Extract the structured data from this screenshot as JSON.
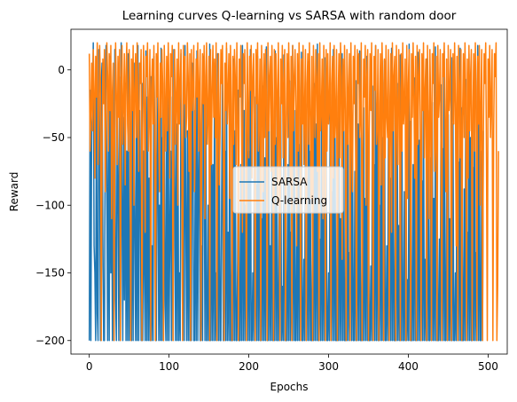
{
  "chart_data": {
    "type": "line",
    "title": "Learning curves Q-learning vs SARSA with random door",
    "xlabel": "Epochs",
    "ylabel": "Reward",
    "xlim": [
      -23,
      524
    ],
    "ylim": [
      -210,
      30
    ],
    "xticks": [
      0,
      100,
      200,
      300,
      400,
      500
    ],
    "yticks": [
      -200,
      -150,
      -100,
      -50,
      0
    ],
    "legend_loc": "center",
    "grid": false,
    "n_points": 500,
    "series": [
      {
        "name": "SARSA",
        "color": "#1f77b4",
        "min": -200,
        "max": 20,
        "values": [
          -200,
          -15,
          -200,
          -45,
          -30,
          20,
          -130,
          -150,
          -200,
          -5,
          -180,
          -200,
          15,
          -60,
          -200,
          -10,
          5,
          -120,
          -200,
          -200,
          -40,
          18,
          -90,
          -200,
          -25,
          -200,
          10,
          -150,
          -60,
          -200,
          -30,
          -200,
          15,
          -170,
          -200,
          -20,
          -80,
          -200,
          -5,
          -200,
          20,
          -100,
          -200,
          -35,
          -170,
          -10,
          -200,
          -60,
          -200,
          12,
          -200,
          -140,
          -40,
          -200,
          -15,
          -200,
          5,
          -120,
          -200,
          -50,
          -200,
          18,
          -200,
          -30,
          -90,
          -200,
          -10,
          -200,
          -60,
          -150,
          -200,
          14,
          -200,
          -20,
          -200,
          -80,
          -200,
          -5,
          -200,
          -130,
          -200,
          10,
          -40,
          -200,
          -200,
          -70,
          -15,
          -200,
          -100,
          -200,
          16,
          -200,
          -50,
          -200,
          -10,
          -170,
          -200,
          -30,
          -200,
          8,
          -200,
          -120,
          -60,
          -200,
          -20,
          -200,
          15,
          -90,
          -200,
          -40,
          -200,
          -5,
          -200,
          -150,
          -200,
          12,
          -70,
          -200,
          -25,
          -200,
          18,
          -110,
          -200,
          -45,
          -200,
          -10,
          -200,
          -160,
          -200,
          5,
          -60,
          -200,
          -200,
          -30,
          -200,
          14,
          -200,
          -80,
          -20,
          -200,
          -200,
          -130,
          -200,
          10,
          -50,
          -200,
          -15,
          -200,
          -200,
          -100,
          -200,
          19,
          -200,
          -35,
          -200,
          -70,
          -200,
          -5,
          -200,
          -150,
          -200,
          12,
          -200,
          -40,
          -200,
          -200,
          -90,
          -10,
          -200,
          -200,
          -60,
          -200,
          16,
          -200,
          -120,
          -200,
          -25,
          -200,
          -200,
          -80,
          -200,
          8,
          -200,
          -45,
          -200,
          -200,
          -140,
          -15,
          -200,
          -200,
          -70,
          -200,
          18,
          -200,
          -30,
          -200,
          -100,
          -200,
          -5,
          -200,
          -60,
          -200,
          15,
          -200,
          -200,
          -150,
          -200,
          -20,
          -200,
          -85,
          -200,
          10,
          -200,
          -40,
          -200,
          -200,
          -110,
          -200,
          -12,
          -200,
          -65,
          -200,
          17,
          -200,
          -200,
          -35,
          -200,
          -130,
          -200,
          -5,
          -200,
          -75,
          -200,
          14,
          -200,
          -50,
          -200,
          -200,
          -95,
          -200,
          -20,
          -200,
          -160,
          -200,
          11,
          -200,
          -45,
          -200,
          -200,
          -70,
          -200,
          -8,
          -200,
          -120,
          -200,
          18,
          -200,
          -30,
          -200,
          -200,
          -90,
          -200,
          -15,
          -200,
          -55,
          -200,
          13,
          -200,
          -200,
          -140,
          -200,
          -25,
          -200,
          -80,
          -200,
          6,
          -200,
          -60,
          -200,
          -200,
          -105,
          -200,
          -10,
          -200,
          -40,
          -200,
          19,
          -200,
          -200,
          -125,
          -200,
          -35,
          -200,
          -70,
          -200,
          9,
          -200,
          -50,
          -200,
          -200,
          -150,
          -200,
          -18,
          -200,
          -90,
          -200,
          15,
          -200,
          -30,
          -200,
          -200,
          -65,
          -200,
          -5,
          -200,
          -110,
          -200,
          12,
          -200,
          -45,
          -200,
          -200,
          -85,
          -200,
          -22,
          -200,
          -135,
          -200,
          17,
          -200,
          -55,
          -200,
          -200,
          -75,
          -200,
          -8,
          -200,
          -40,
          -200,
          14,
          -200,
          -200,
          -120,
          -200,
          -28,
          -200,
          -95,
          -200,
          10,
          -200,
          -60,
          -200,
          -200,
          -145,
          -200,
          -12,
          -200,
          -70,
          -200,
          18,
          -200,
          -35,
          -200,
          -200,
          -100,
          -200,
          -18,
          -200,
          -50,
          -200,
          7,
          -200,
          -200,
          -130,
          -200,
          -42,
          -200,
          -80,
          -200,
          16,
          -200,
          -25,
          -200,
          -200,
          -60,
          -200,
          -10,
          -200,
          -115,
          -200,
          11,
          -200,
          -48,
          -200,
          -200,
          -90,
          -200,
          -20,
          -200,
          -155,
          -200,
          19,
          -200,
          -38,
          -200,
          -200,
          -70,
          -200,
          -6,
          -200,
          -105,
          -200,
          13,
          -200,
          -52,
          -200,
          -200,
          -82,
          -200,
          -15,
          -200,
          -140,
          -200,
          8,
          -200,
          -30,
          -200,
          -200,
          -65,
          -200,
          -24,
          -200,
          -95,
          -200,
          17,
          -200,
          -44,
          -200,
          -200,
          -125,
          -200,
          -11,
          -200,
          -58,
          -200,
          14,
          -200,
          -200,
          -78,
          -200,
          -33,
          -200,
          -110,
          -200,
          9,
          -200,
          -40,
          -200,
          -200,
          -150,
          -200,
          -19,
          -200,
          -68,
          -200,
          16,
          -200,
          -28,
          -200,
          -200,
          -88,
          -200,
          -7,
          -200,
          -120,
          -200,
          12,
          -200,
          -50,
          -200,
          -200,
          -72,
          -200,
          -16,
          -200,
          -135,
          -200,
          18,
          -200,
          -36,
          -200,
          -200,
          -60,
          -200,
          -45
        ]
      },
      {
        "name": "Q-learning",
        "color": "#ff7f0e",
        "min": -200,
        "max": 20,
        "values": [
          12,
          -60,
          -30,
          5,
          -45,
          15,
          -15,
          -80,
          10,
          -20,
          20,
          -70,
          -35,
          18,
          -10,
          -200,
          -50,
          8,
          -25,
          15,
          -90,
          -40,
          20,
          -5,
          -60,
          12,
          -30,
          18,
          -110,
          -15,
          5,
          -200,
          -45,
          20,
          -20,
          -70,
          10,
          -35,
          15,
          -200,
          -10,
          18,
          -55,
          -25,
          12,
          -85,
          -5,
          20,
          -40,
          -60,
          15,
          -20,
          -200,
          8,
          -30,
          18,
          -100,
          -15,
          12,
          -50,
          20,
          -35,
          -75,
          5,
          -10,
          15,
          -200,
          -45,
          18,
          -25,
          -120,
          10,
          -5,
          20,
          -60,
          -30,
          15,
          -200,
          -15,
          8,
          -40,
          18,
          -70,
          -200,
          12,
          -20,
          20,
          -50,
          -90,
          5,
          -35,
          15,
          -10,
          -200,
          18,
          -25,
          -60,
          10,
          -45,
          20,
          -15,
          -80,
          12,
          -5,
          18,
          -200,
          -30,
          15,
          -55,
          -20,
          8,
          -100,
          20,
          -40,
          -10,
          15,
          -65,
          -200,
          18,
          -25,
          10,
          -50,
          -35,
          20,
          -5,
          -75,
          12,
          -200,
          15,
          -30,
          -15,
          18,
          -90,
          -45,
          8,
          -20,
          20,
          -60,
          -10,
          15,
          -200,
          -40,
          12,
          -25,
          18,
          -110,
          -5,
          20,
          -55,
          -30,
          10,
          -200,
          15,
          -70,
          -15,
          18,
          -35,
          8,
          -50,
          20,
          -200,
          -20,
          12,
          -85,
          -45,
          15,
          -10,
          18,
          -60,
          -200,
          5,
          -30,
          20,
          -40,
          -15,
          12,
          -95,
          18,
          -25,
          -200,
          10,
          -55,
          15,
          -5,
          -70,
          20,
          -35,
          -200,
          8,
          -20,
          18,
          -50,
          -120,
          12,
          -10,
          15,
          -45,
          -200,
          20,
          -30,
          -65,
          10,
          -15,
          18,
          -80,
          -5,
          12,
          -40,
          -200,
          15,
          -25,
          20,
          -60,
          -35,
          8,
          -200,
          18,
          -10,
          -90,
          12,
          -50,
          15,
          -20,
          -200,
          20,
          -45,
          -5,
          10,
          -75,
          18,
          -30,
          -200,
          15,
          -55,
          12,
          -15,
          -100,
          20,
          -40,
          -200,
          8,
          -25,
          18,
          -65,
          -10,
          15,
          -200,
          -35,
          12,
          -50,
          20,
          -20,
          -85,
          10,
          -200,
          18,
          -45,
          -5,
          15,
          -30,
          -130,
          12,
          -60,
          20,
          -15,
          -200,
          8,
          -40,
          18,
          -70,
          -25,
          15,
          -200,
          -10,
          12,
          -55,
          20,
          -35,
          -95,
          10,
          -200,
          18,
          -20,
          -50,
          15,
          -5,
          -75,
          12,
          -200,
          20,
          -45,
          -30,
          8,
          -110,
          18,
          -15,
          -200,
          15,
          -60,
          12,
          -40,
          -25,
          20,
          -200,
          -10,
          10,
          -80,
          18,
          -50,
          -35,
          15,
          -200,
          -20,
          12,
          -65,
          20,
          -5,
          -140,
          8,
          -45,
          18,
          -30,
          -200,
          15,
          -55,
          -15,
          12,
          -200,
          20,
          -40,
          -90,
          10,
          -25,
          18,
          -70,
          -200,
          15,
          -10,
          12,
          -50,
          -35,
          20,
          -200,
          -60,
          8,
          -20,
          18,
          -100,
          -5,
          15,
          -200,
          -45,
          12,
          -30,
          20,
          -75,
          -200,
          10,
          -15,
          18,
          -55,
          -40,
          15,
          -200,
          -25,
          12,
          -85,
          20,
          -10,
          -200,
          8,
          -65,
          18,
          -35,
          -50,
          15,
          -200,
          -20,
          12,
          -120,
          20,
          -45,
          -5,
          10,
          -200,
          18,
          -30,
          -70,
          15,
          -15,
          -200,
          12,
          -60,
          20,
          -40,
          -25,
          8,
          -200,
          18,
          -95,
          -10,
          15,
          -50,
          -200,
          12,
          -35,
          20,
          -20,
          -80,
          10,
          -200,
          18,
          -55,
          -5,
          15,
          -45,
          -200,
          12,
          -30,
          20,
          -65,
          -15,
          8,
          -200,
          18,
          -40,
          -110,
          15,
          -25,
          -200,
          12,
          -10,
          20,
          -75,
          -50,
          10,
          -200,
          18,
          -35,
          -20,
          15,
          -60,
          -200,
          12,
          -5,
          20,
          -45,
          -90,
          8,
          -200,
          18,
          -30,
          -15,
          15,
          -200,
          -55,
          12,
          -40,
          20,
          -25,
          -130,
          10,
          -200,
          18,
          -10,
          -65,
          15,
          -200,
          -35,
          12,
          -50,
          20,
          -20,
          -200,
          8,
          -80,
          18,
          -45,
          -5,
          15,
          -200,
          -30,
          12,
          -60,
          20,
          -15,
          -200,
          10,
          -40,
          18,
          -100,
          -25,
          15,
          -200,
          -55,
          12,
          -10,
          20,
          -70,
          -200,
          8,
          -35,
          18,
          -50,
          -20,
          15,
          -200,
          -45,
          12,
          -5,
          20,
          -200,
          -160,
          -60
        ]
      }
    ]
  }
}
